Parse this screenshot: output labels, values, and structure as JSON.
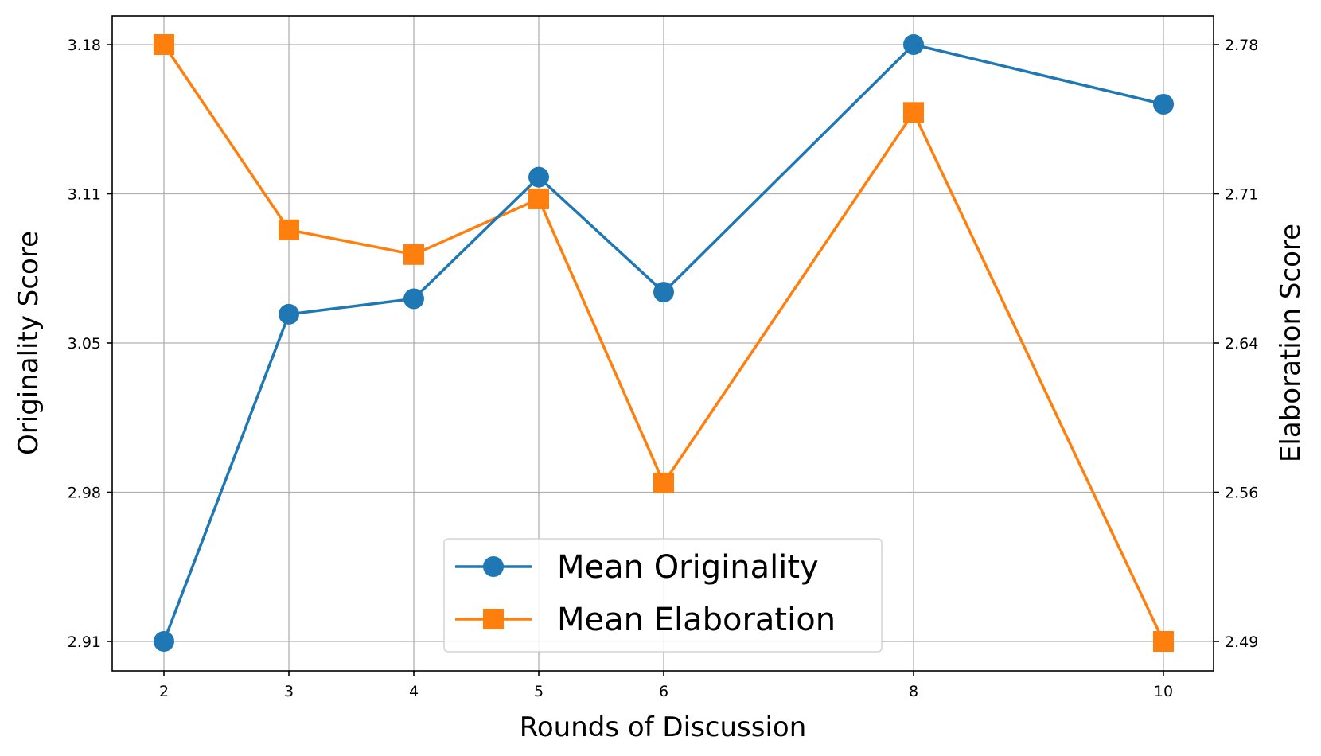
{
  "chart_data": {
    "type": "line",
    "title": "",
    "xlabel": "Rounds of Discussion",
    "ylabel": "Originality Score",
    "ylabel_right": "Elaboration Score",
    "categories": [
      "2",
      "3",
      "4",
      "5",
      "6",
      "8",
      "10"
    ],
    "y_left_ticks": [
      "2.91",
      "2.98",
      "3.05",
      "3.11",
      "3.18"
    ],
    "y_right_ticks": [
      "2.49",
      "2.56",
      "2.64",
      "2.71",
      "2.78"
    ],
    "y_left_range": [
      2.91,
      3.18
    ],
    "y_right_range": [
      2.49,
      2.78
    ],
    "grid": true,
    "legend_position": "bottom-center",
    "series": [
      {
        "name": "Mean Originality",
        "axis": "left",
        "marker": "circle",
        "color": "#1f77b4",
        "values": [
          2.91,
          3.058,
          3.065,
          3.12,
          3.068,
          3.18,
          3.153
        ]
      },
      {
        "name": "Mean Elaboration",
        "axis": "right",
        "marker": "square",
        "color": "#ff7f0e",
        "values": [
          2.78,
          2.69,
          2.678,
          2.705,
          2.567,
          2.747,
          2.49
        ]
      }
    ]
  }
}
